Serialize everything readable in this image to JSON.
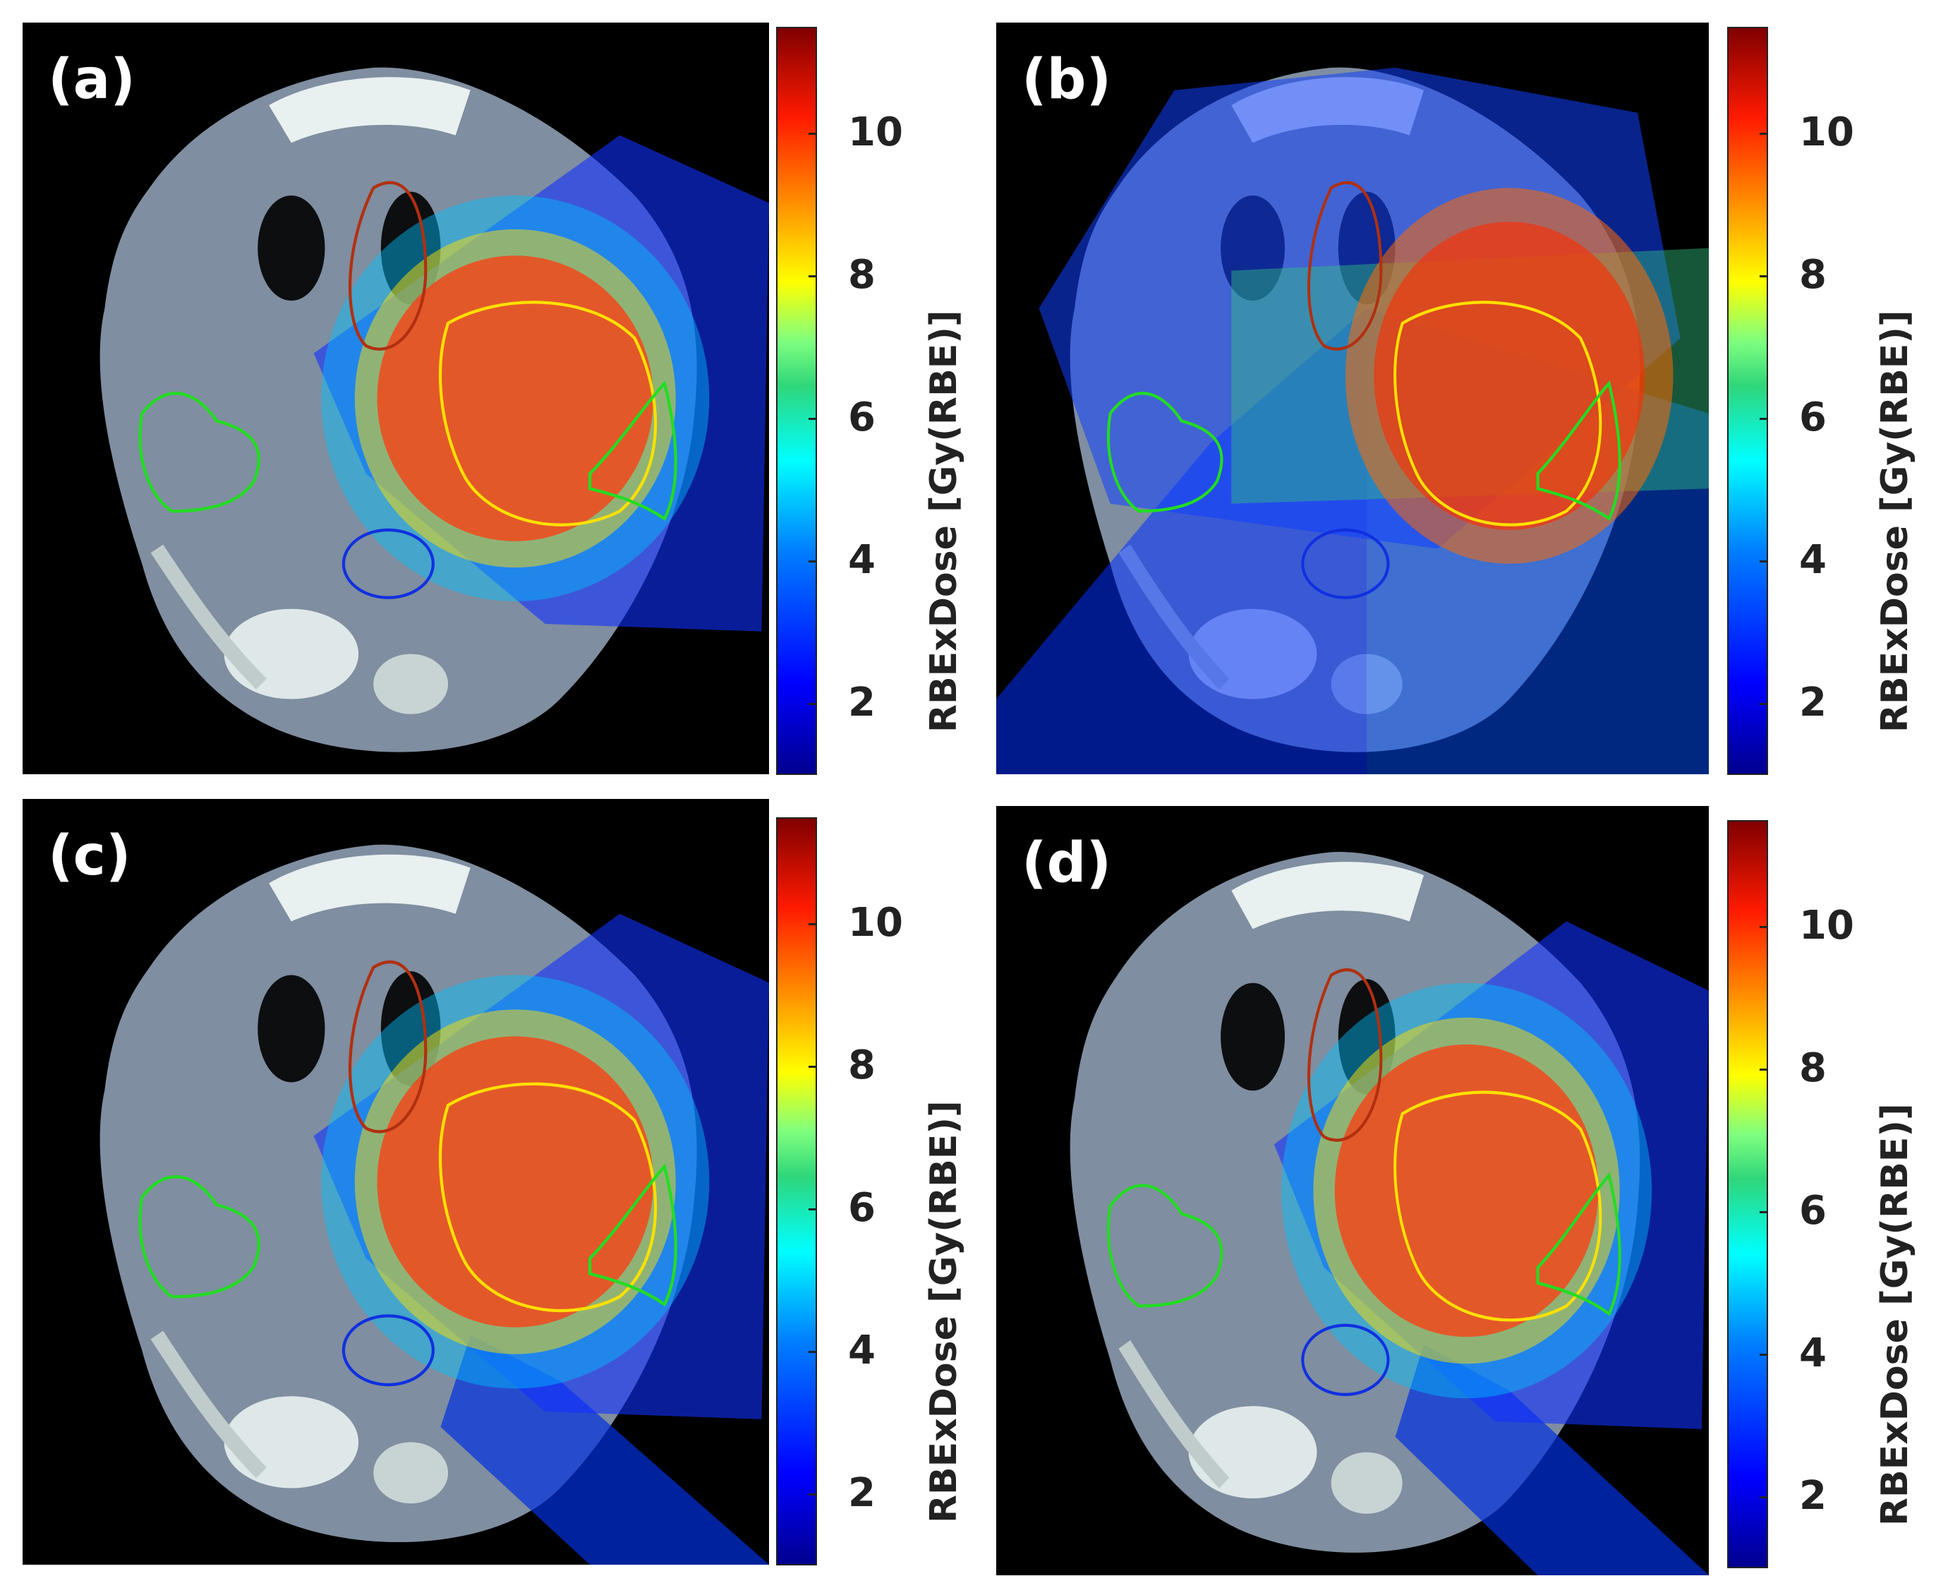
{
  "panels": [
    {
      "label": "(a)"
    },
    {
      "label": "(b)"
    },
    {
      "label": "(c)"
    },
    {
      "label": "(d)"
    }
  ],
  "colorbar": {
    "title": "RBExDose [Gy(RBE)]",
    "ticks": [
      "2",
      "4",
      "6",
      "8",
      "10"
    ]
  },
  "colors": {
    "background": "#000000",
    "ptv_contour": "#ffe000",
    "brainstem_contour": "#b03010",
    "parotid_contour": "#22dd22",
    "spinal_cord_contour": "#1030e0"
  }
}
